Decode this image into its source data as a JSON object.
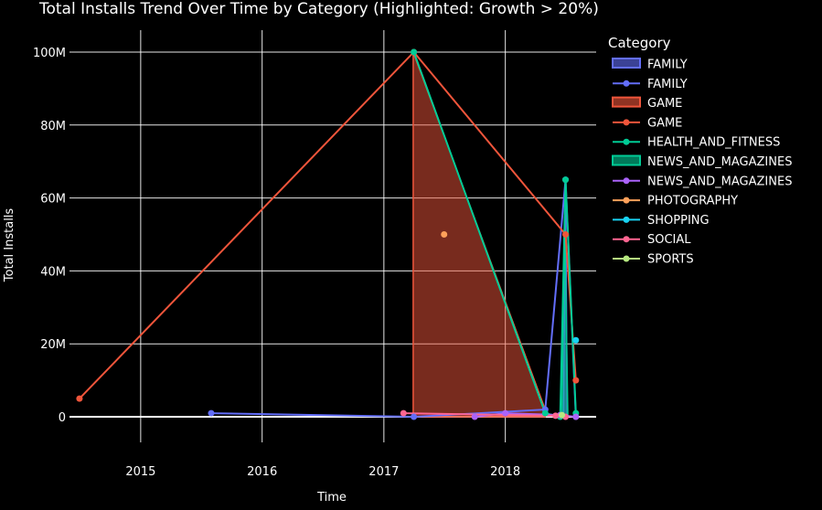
{
  "chart_data": {
    "type": "line",
    "title": "Total Installs Trend Over Time by Category (Highlighted: Growth > 20%)",
    "xlabel": "Time",
    "ylabel": "Total Installs",
    "x_ticks": [
      "2015",
      "2016",
      "2017",
      "2018"
    ],
    "y_ticks": [
      "0",
      "20M",
      "40M",
      "60M",
      "80M",
      "100M"
    ],
    "xlim": [
      "2014-06-01",
      "2018-10-01"
    ],
    "ylim": [
      -7000000,
      106000000
    ],
    "grid": true,
    "background": "#000000",
    "legend": {
      "title": "Category",
      "placement": "right",
      "entries": [
        {
          "label": "FAMILY",
          "kind": "band",
          "color": "#636efa"
        },
        {
          "label": "FAMILY",
          "kind": "line",
          "color": "#636efa"
        },
        {
          "label": "GAME",
          "kind": "band",
          "color": "#ef553b"
        },
        {
          "label": "GAME",
          "kind": "line",
          "color": "#ef553b"
        },
        {
          "label": "HEALTH_AND_FITNESS",
          "kind": "line",
          "color": "#00cc96"
        },
        {
          "label": "NEWS_AND_MAGAZINES",
          "kind": "band",
          "color": "#00cc96"
        },
        {
          "label": "NEWS_AND_MAGAZINES",
          "kind": "line",
          "color": "#ab63fa"
        },
        {
          "label": "PHOTOGRAPHY",
          "kind": "line",
          "color": "#ffa15a"
        },
        {
          "label": "SHOPPING",
          "kind": "line",
          "color": "#19d3f3"
        },
        {
          "label": "SOCIAL",
          "kind": "line",
          "color": "#ff6692"
        },
        {
          "label": "SPORTS",
          "kind": "line",
          "color": "#b6e880"
        }
      ]
    },
    "highlight_bands": [
      {
        "legend_index": 0,
        "color": "#636efa",
        "opacity": 0.55,
        "x": [
          "2018-06-25",
          "2018-07-01",
          "2018-07-06"
        ],
        "y": [
          0,
          65000000,
          0
        ]
      },
      {
        "legend_index": 2,
        "color": "#ef553b",
        "opacity": 0.5,
        "x": [
          "2017-03-30",
          "2017-03-30",
          "2018-05-01",
          "2018-05-01"
        ],
        "y": [
          0,
          100000000,
          2000000,
          0
        ]
      },
      {
        "legend_index": 5,
        "color": "#00cc96",
        "opacity": 0.5,
        "x": [
          "2018-06-20",
          "2018-06-28",
          "2018-07-08"
        ],
        "y": [
          0,
          55000000,
          0
        ]
      }
    ],
    "series": [
      {
        "name": "FAMILY",
        "legend_index": 1,
        "color": "#636efa",
        "x": [
          "2015-08-01",
          "2017-04-01",
          "2018-05-01",
          "2018-07-01",
          "2018-08-01"
        ],
        "y": [
          1000000,
          0,
          2000000,
          65000000,
          0
        ]
      },
      {
        "name": "GAME",
        "legend_index": 3,
        "color": "#ef553b",
        "x": [
          "2014-07-01",
          "2017-04-01",
          "2018-07-01",
          "2018-08-01"
        ],
        "y": [
          5000000,
          100000000,
          50000000,
          10000000
        ]
      },
      {
        "name": "HEALTH_AND_FITNESS",
        "legend_index": 4,
        "color": "#00cc96",
        "x": [
          "2017-04-01",
          "2018-05-01",
          "2018-06-15",
          "2018-07-01",
          "2018-08-01"
        ],
        "y": [
          100000000,
          1000000,
          0,
          65000000,
          1000000
        ]
      },
      {
        "name": "NEWS_AND_MAGAZINES",
        "legend_index": 6,
        "color": "#ab63fa",
        "x": [
          "2017-10-01",
          "2018-01-01",
          "2018-06-15",
          "2018-08-01"
        ],
        "y": [
          0,
          1000000,
          500000,
          0
        ]
      },
      {
        "name": "PHOTOGRAPHY",
        "legend_index": 7,
        "color": "#ffa15a",
        "x": [
          "2017-07-01"
        ],
        "y": [
          50000000
        ]
      },
      {
        "name": "SHOPPING",
        "legend_index": 8,
        "color": "#19d3f3",
        "x": [
          "2018-08-01"
        ],
        "y": [
          21000000
        ]
      },
      {
        "name": "SOCIAL",
        "legend_index": 9,
        "color": "#ff6692",
        "x": [
          "2017-03-01",
          "2018-06-01",
          "2018-07-01"
        ],
        "y": [
          1000000,
          300000,
          0
        ]
      },
      {
        "name": "SPORTS",
        "legend_index": 10,
        "color": "#b6e880",
        "x": [
          "2018-06-20"
        ],
        "y": [
          500000
        ]
      }
    ]
  }
}
